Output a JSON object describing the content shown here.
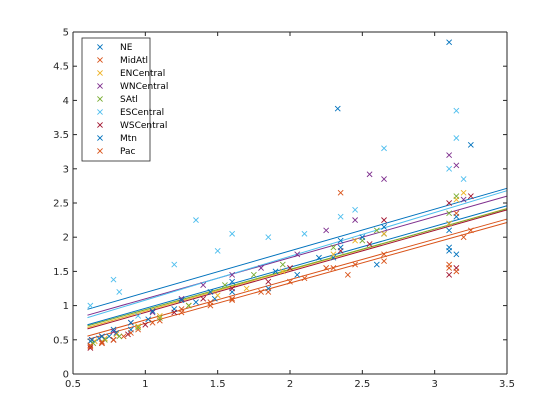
{
  "chart_data": {
    "type": "scatter",
    "title": "",
    "xlabel": "",
    "ylabel": "",
    "xlim": [
      0.5,
      3.5
    ],
    "ylim": [
      0,
      5
    ],
    "xticks": [
      0.5,
      1,
      1.5,
      2,
      2.5,
      3,
      3.5
    ],
    "xtick_labels": [
      "0.5",
      "1",
      "1.5",
      "2",
      "2.5",
      "3",
      "3.5"
    ],
    "yticks": [
      0,
      0.5,
      1,
      1.5,
      2,
      2.5,
      3,
      3.5,
      4,
      4.5,
      5
    ],
    "ytick_labels": [
      "0",
      "0.5",
      "1",
      "1.5",
      "2",
      "2.5",
      "3",
      "3.5",
      "4",
      "4.5",
      "5"
    ],
    "grid": false,
    "legend_position": "top-left",
    "marker": "x",
    "series": [
      {
        "name": "NE",
        "color": "#0072BD",
        "points": [
          [
            0.62,
            0.48
          ],
          [
            0.68,
            0.52
          ],
          [
            0.75,
            0.55
          ],
          [
            0.8,
            0.6
          ],
          [
            0.9,
            0.65
          ],
          [
            1.02,
            0.8
          ],
          [
            1.2,
            0.95
          ],
          [
            1.35,
            1.05
          ],
          [
            1.48,
            1.1
          ],
          [
            1.6,
            1.2
          ],
          [
            1.85,
            1.25
          ],
          [
            2.05,
            1.45
          ],
          [
            2.3,
            1.7
          ],
          [
            2.35,
            1.95
          ],
          [
            2.6,
            1.6
          ],
          [
            2.65,
            2.05
          ],
          [
            3.1,
            2.2
          ],
          [
            3.15,
            2.3
          ],
          [
            3.1,
            1.85
          ],
          [
            3.1,
            4.85
          ],
          [
            2.33,
            3.88
          ],
          [
            3.25,
            3.35
          ]
        ],
        "fit": [
          0.61,
          0.58
        ]
      },
      {
        "name": "MidAtl",
        "color": "#D95319",
        "points": [
          [
            0.62,
            0.42
          ],
          [
            0.7,
            0.47
          ],
          [
            0.78,
            0.5
          ],
          [
            0.85,
            0.55
          ],
          [
            0.95,
            0.65
          ],
          [
            1.1,
            0.78
          ],
          [
            1.25,
            0.9
          ],
          [
            1.45,
            1.0
          ],
          [
            1.6,
            1.08
          ],
          [
            1.8,
            1.2
          ],
          [
            2.0,
            1.35
          ],
          [
            2.25,
            1.55
          ],
          [
            2.35,
            2.65
          ],
          [
            2.4,
            1.45
          ],
          [
            2.65,
            1.65
          ],
          [
            3.1,
            1.55
          ],
          [
            3.15,
            2.35
          ],
          [
            3.2,
            2.0
          ]
        ],
        "fit": [
          0.59,
          0.15
        ]
      },
      {
        "name": "ENCentral",
        "color": "#EDB120",
        "points": [
          [
            0.65,
            0.48
          ],
          [
            0.72,
            0.52
          ],
          [
            0.8,
            0.58
          ],
          [
            0.95,
            0.7
          ],
          [
            1.1,
            0.85
          ],
          [
            1.3,
            1.0
          ],
          [
            1.5,
            1.15
          ],
          [
            1.7,
            1.25
          ],
          [
            1.95,
            1.5
          ],
          [
            2.3,
            1.75
          ],
          [
            2.45,
            1.95
          ],
          [
            2.65,
            2.05
          ],
          [
            3.1,
            2.2
          ],
          [
            3.15,
            2.55
          ],
          [
            3.2,
            2.65
          ]
        ],
        "fit": [
          0.6,
          0.32
        ]
      },
      {
        "name": "WNCentral",
        "color": "#7E2F8E",
        "points": [
          [
            0.63,
            0.5
          ],
          [
            0.7,
            0.55
          ],
          [
            0.78,
            0.62
          ],
          [
            0.9,
            0.75
          ],
          [
            1.05,
            0.9
          ],
          [
            1.25,
            1.1
          ],
          [
            1.4,
            1.3
          ],
          [
            1.6,
            1.45
          ],
          [
            1.8,
            1.55
          ],
          [
            2.05,
            1.75
          ],
          [
            2.25,
            2.1
          ],
          [
            2.45,
            2.25
          ],
          [
            2.55,
            2.92
          ],
          [
            2.65,
            2.85
          ],
          [
            3.1,
            3.2
          ],
          [
            3.15,
            3.05
          ],
          [
            3.2,
            2.55
          ]
        ],
        "fit": [
          0.6,
          0.5
        ]
      },
      {
        "name": "SAtl",
        "color": "#77AC30",
        "points": [
          [
            0.64,
            0.45
          ],
          [
            0.72,
            0.5
          ],
          [
            0.82,
            0.55
          ],
          [
            0.95,
            0.68
          ],
          [
            1.1,
            0.82
          ],
          [
            1.3,
            1.0
          ],
          [
            1.55,
            1.3
          ],
          [
            1.75,
            1.45
          ],
          [
            1.95,
            1.6
          ],
          [
            2.3,
            1.85
          ],
          [
            2.5,
            1.95
          ],
          [
            2.6,
            2.1
          ],
          [
            3.1,
            2.35
          ],
          [
            3.15,
            2.6
          ]
        ],
        "fit": [
          0.59,
          0.35
        ]
      },
      {
        "name": "ESCentral",
        "color": "#4DBEEE",
        "points": [
          [
            0.62,
            1.0
          ],
          [
            0.78,
            1.38
          ],
          [
            0.82,
            1.2
          ],
          [
            0.95,
            0.85
          ],
          [
            1.2,
            1.6
          ],
          [
            1.35,
            2.25
          ],
          [
            1.5,
            1.8
          ],
          [
            1.6,
            2.05
          ],
          [
            1.85,
            2.0
          ],
          [
            2.1,
            2.05
          ],
          [
            2.35,
            2.3
          ],
          [
            2.45,
            2.4
          ],
          [
            2.65,
            3.3
          ],
          [
            3.1,
            3.0
          ],
          [
            3.15,
            3.45
          ],
          [
            3.15,
            3.85
          ],
          [
            3.2,
            2.85
          ]
        ],
        "fit": [
          0.64,
          0.44
        ]
      },
      {
        "name": "WSCentral",
        "color": "#A2142F",
        "points": [
          [
            0.62,
            0.38
          ],
          [
            0.7,
            0.45
          ],
          [
            0.78,
            0.5
          ],
          [
            0.88,
            0.58
          ],
          [
            1.0,
            0.72
          ],
          [
            1.2,
            0.9
          ],
          [
            1.4,
            1.1
          ],
          [
            1.6,
            1.25
          ],
          [
            1.85,
            1.35
          ],
          [
            2.0,
            1.55
          ],
          [
            2.35,
            1.8
          ],
          [
            2.55,
            1.9
          ],
          [
            2.65,
            2.25
          ],
          [
            3.1,
            2.5
          ],
          [
            3.1,
            1.45
          ],
          [
            3.15,
            1.55
          ],
          [
            3.25,
            2.6
          ]
        ],
        "fit": [
          0.6,
          0.3
        ]
      },
      {
        "name": "Mtn",
        "color": "#0072BD",
        "points": [
          [
            0.63,
            0.5
          ],
          [
            0.7,
            0.55
          ],
          [
            0.78,
            0.65
          ],
          [
            0.9,
            0.75
          ],
          [
            1.05,
            0.92
          ],
          [
            1.25,
            1.08
          ],
          [
            1.45,
            1.2
          ],
          [
            1.6,
            1.35
          ],
          [
            1.9,
            1.5
          ],
          [
            2.2,
            1.7
          ],
          [
            2.35,
            1.85
          ],
          [
            2.5,
            2.0
          ],
          [
            2.65,
            2.15
          ],
          [
            3.1,
            2.1
          ],
          [
            3.1,
            1.8
          ],
          [
            3.15,
            1.75
          ]
        ],
        "fit": [
          0.6,
          0.36
        ]
      },
      {
        "name": "Pac",
        "color": "#D95319",
        "points": [
          [
            0.62,
            0.4
          ],
          [
            0.7,
            0.45
          ],
          [
            0.78,
            0.5
          ],
          [
            0.9,
            0.6
          ],
          [
            1.05,
            0.75
          ],
          [
            1.25,
            0.95
          ],
          [
            1.45,
            1.05
          ],
          [
            1.6,
            1.1
          ],
          [
            1.85,
            1.2
          ],
          [
            2.1,
            1.4
          ],
          [
            2.3,
            1.55
          ],
          [
            2.45,
            1.6
          ],
          [
            2.65,
            1.75
          ],
          [
            3.1,
            1.6
          ],
          [
            3.15,
            1.5
          ],
          [
            3.25,
            2.1
          ]
        ],
        "fit": [
          0.59,
          0.2
        ]
      }
    ]
  }
}
